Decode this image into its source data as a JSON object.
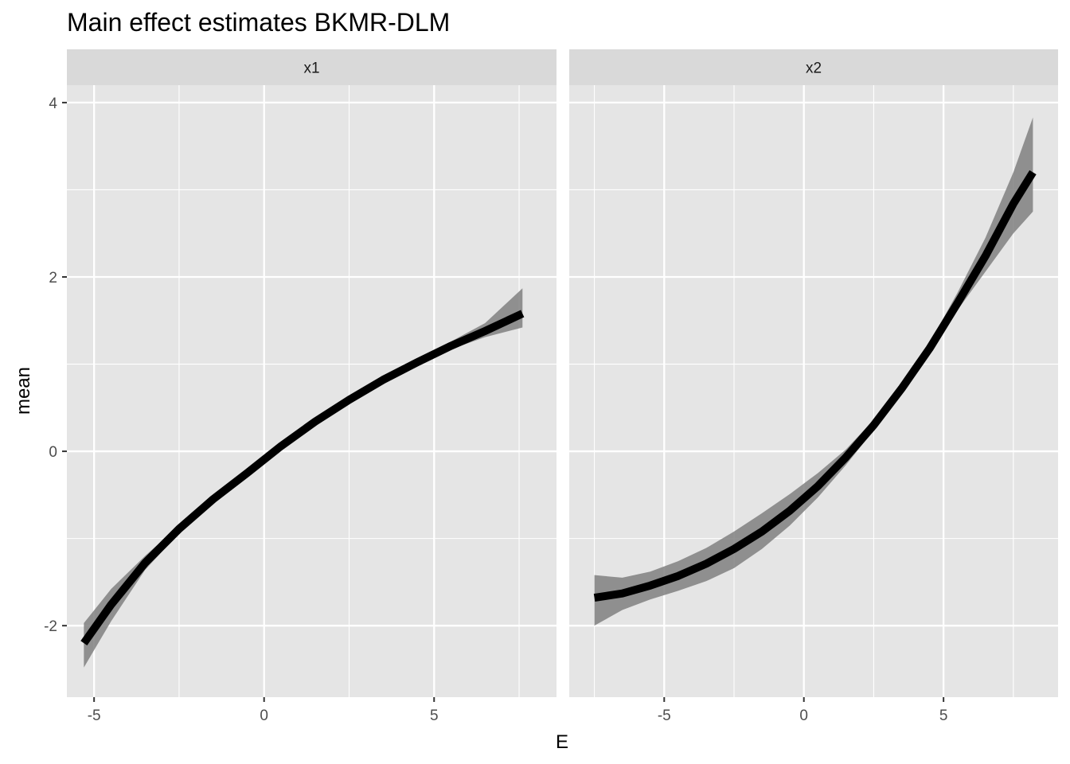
{
  "chart_data": {
    "type": "line",
    "title": "Main effect estimates BKMR-DLM",
    "xlabel": "E",
    "ylabel": "mean",
    "ylim": [
      -2.82,
      4.2
    ],
    "yticks": [
      -2,
      0,
      2,
      4
    ],
    "grid": true,
    "colors": {
      "panel_background": "#e5e5e5",
      "strip_background": "#d9d9d9",
      "grid": "#ffffff",
      "line": "#000000",
      "ribbon": "#808080"
    },
    "panels": [
      {
        "label": "x1",
        "xlim": [
          -5.8,
          8.6
        ],
        "xticks": [
          -5,
          0,
          5
        ],
        "series": [
          {
            "x": [
              -5.3,
              -4.5,
              -3.5,
              -2.5,
              -1.5,
              -0.5,
              0.5,
              1.5,
              2.5,
              3.5,
              4.5,
              5.5,
              6.5,
              7.6
            ],
            "mean": [
              -2.2,
              -1.76,
              -1.28,
              -0.89,
              -0.55,
              -0.25,
              0.06,
              0.34,
              0.59,
              0.82,
              1.02,
              1.21,
              1.38,
              1.58
            ],
            "lower": [
              -2.48,
              -1.95,
              -1.36,
              -0.94,
              -0.6,
              -0.29,
              0.02,
              0.3,
              0.55,
              0.78,
              0.98,
              1.17,
              1.31,
              1.42
            ],
            "upper": [
              -1.97,
              -1.58,
              -1.2,
              -0.85,
              -0.52,
              -0.21,
              0.1,
              0.38,
              0.63,
              0.86,
              1.06,
              1.26,
              1.47,
              1.87
            ]
          }
        ]
      },
      {
        "label": "x2",
        "xlim": [
          -8.4,
          9.1
        ],
        "xticks": [
          -5,
          0,
          5
        ],
        "series": [
          {
            "x": [
              -7.5,
              -6.5,
              -5.5,
              -4.5,
              -3.5,
              -2.5,
              -1.5,
              -0.5,
              0.5,
              1.5,
              2.5,
              3.5,
              4.5,
              5.5,
              6.5,
              7.5,
              8.2
            ],
            "mean": [
              -1.68,
              -1.63,
              -1.54,
              -1.43,
              -1.29,
              -1.12,
              -0.92,
              -0.68,
              -0.4,
              -0.07,
              0.3,
              0.72,
              1.18,
              1.7,
              2.24,
              2.84,
              3.2
            ],
            "lower": [
              -2.0,
              -1.82,
              -1.7,
              -1.6,
              -1.49,
              -1.34,
              -1.12,
              -0.85,
              -0.53,
              -0.16,
              0.24,
              0.66,
              1.14,
              1.62,
              2.06,
              2.5,
              2.75
            ],
            "upper": [
              -1.42,
              -1.45,
              -1.38,
              -1.26,
              -1.11,
              -0.92,
              -0.71,
              -0.49,
              -0.25,
              0.02,
              0.36,
              0.78,
              1.24,
              1.82,
              2.45,
              3.2,
              3.83
            ]
          }
        ]
      }
    ]
  }
}
